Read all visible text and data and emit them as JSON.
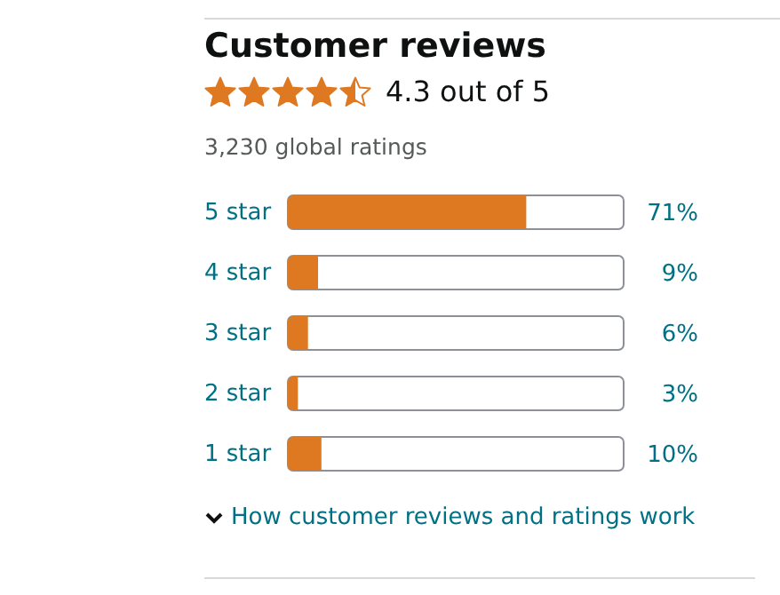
{
  "chart_data": {
    "type": "bar",
    "orientation": "horizontal",
    "title": "Customer reviews",
    "subtitle": "4.3 out of 5",
    "annotations": [
      "3,230 global ratings",
      "How customer reviews and ratings work"
    ],
    "categories": [
      "5 star",
      "4 star",
      "3 star",
      "2 star",
      "1 star"
    ],
    "values": [
      71,
      9,
      6,
      3,
      10
    ],
    "color": "#de7921",
    "value_labels": [
      "71%",
      "9%",
      "6%",
      "3%",
      "10%"
    ],
    "xlim": [
      0,
      100
    ],
    "tick_labels": "y"
  }
}
